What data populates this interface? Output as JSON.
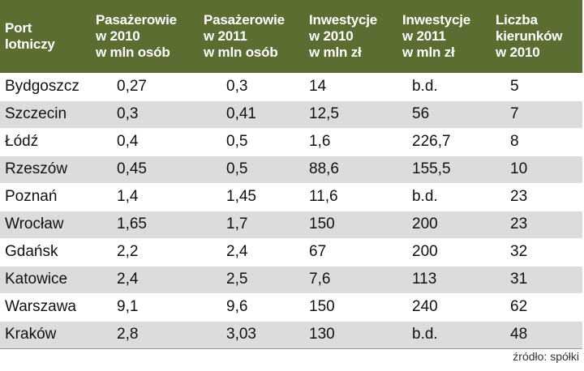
{
  "table": {
    "headers": [
      "Port\nlotniczy",
      "Pasażerowie\nw 2010\nw mln osób",
      "Pasażerowie\nw 2011\nw mln osób",
      "Inwestycje\nw 2010\nw mln zł",
      "Inwestycje\nw 2011\nw mln zł",
      "Liczba\nkierunków\nw 2010"
    ],
    "rows": [
      [
        "Bydgoszcz",
        "0,27",
        "0,3",
        "14",
        "b.d.",
        "5"
      ],
      [
        "Szczecin",
        "0,3",
        "0,41",
        "12,5",
        "56",
        "7"
      ],
      [
        "Łódź",
        "0,4",
        "0,5",
        "1,6",
        "226,7",
        "8"
      ],
      [
        "Rzeszów",
        "0,45",
        "0,5",
        "88,6",
        "155,5",
        "10"
      ],
      [
        "Poznań",
        "1,4",
        "1,45",
        "11,6",
        "b.d.",
        "23"
      ],
      [
        "Wrocław",
        "1,65",
        "1,7",
        "150",
        "200",
        "23"
      ],
      [
        "Gdańsk",
        "2,2",
        "2,4",
        "67",
        "200",
        "32"
      ],
      [
        "Katowice",
        "2,4",
        "2,5",
        "7,6",
        "113",
        "31"
      ],
      [
        "Warszawa",
        "9,1",
        "9,6",
        "150",
        "240",
        "62"
      ],
      [
        "Kraków",
        "2,8",
        "3,03",
        "130",
        "b.d.",
        "48"
      ]
    ]
  },
  "source": "źródło: spółki",
  "colors": {
    "header_bg": "#5c6d32",
    "stripe": "#dcdcdc"
  }
}
